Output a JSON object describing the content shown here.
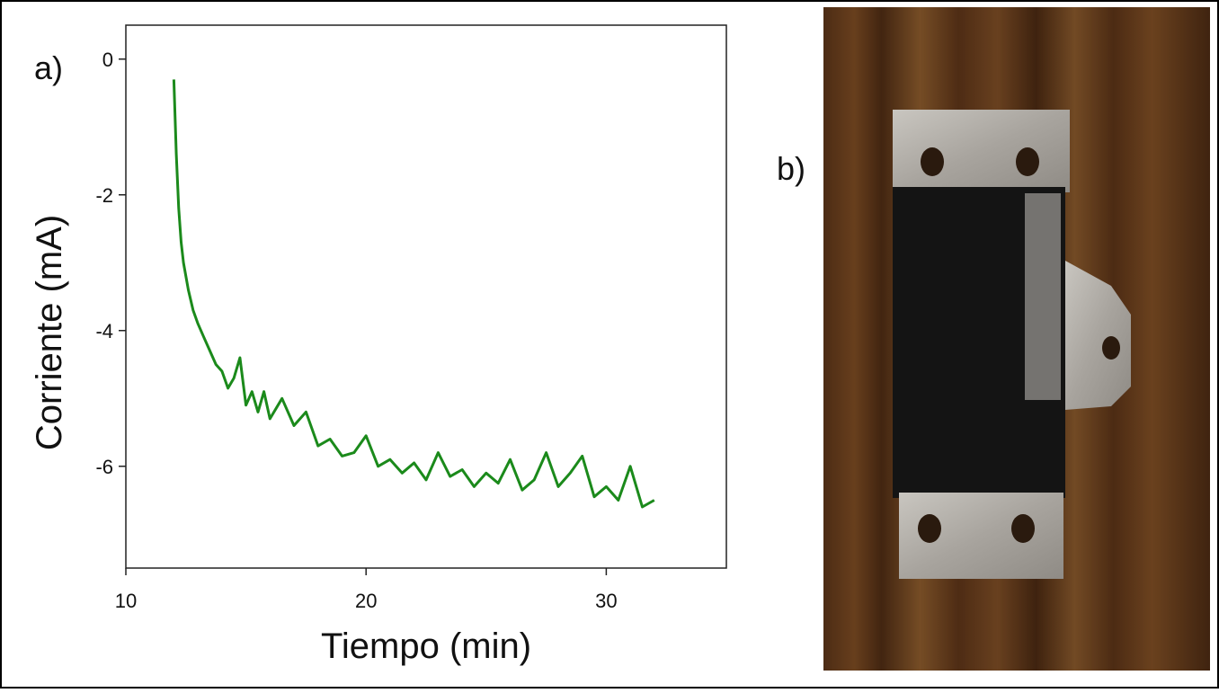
{
  "panel_labels": {
    "a": "a)",
    "b": "b)"
  },
  "chart_data": {
    "type": "line",
    "x_label": "Tiempo (min)",
    "y_label": "Corriente (mA)",
    "xlim": [
      10,
      35
    ],
    "ylim": [
      -7.5,
      0.5
    ],
    "xticks": [
      10,
      20,
      30
    ],
    "yticks": [
      0,
      -2,
      -4,
      -6
    ],
    "color": "#1b8a1b",
    "x": [
      12,
      12.1,
      12.2,
      12.3,
      12.4,
      12.6,
      12.8,
      13,
      13.25,
      13.5,
      13.75,
      14,
      14.25,
      14.5,
      14.75,
      15,
      15.25,
      15.5,
      15.75,
      16,
      16.5,
      17,
      17.5,
      18,
      18.5,
      19,
      19.5,
      20,
      20.5,
      21,
      21.5,
      22,
      22.5,
      23,
      23.5,
      24,
      24.5,
      25,
      25.5,
      26,
      26.5,
      27,
      27.5,
      28,
      28.5,
      29,
      29.5,
      30,
      30.5,
      31,
      31.5,
      32
    ],
    "values": [
      -0.3,
      -1.4,
      -2.2,
      -2.7,
      -3.0,
      -3.4,
      -3.7,
      -3.9,
      -4.1,
      -4.3,
      -4.5,
      -4.6,
      -4.85,
      -4.7,
      -4.4,
      -5.1,
      -4.9,
      -5.2,
      -4.9,
      -5.3,
      -5.0,
      -5.4,
      -5.2,
      -5.7,
      -5.6,
      -5.85,
      -5.8,
      -5.55,
      -6.0,
      -5.9,
      -6.1,
      -5.95,
      -6.2,
      -5.8,
      -6.15,
      -6.05,
      -6.3,
      -6.1,
      -6.25,
      -5.9,
      -6.35,
      -6.2,
      -5.8,
      -6.3,
      -6.1,
      -5.85,
      -6.45,
      -6.3,
      -6.5,
      -6.0,
      -6.6,
      -6.5
    ]
  }
}
